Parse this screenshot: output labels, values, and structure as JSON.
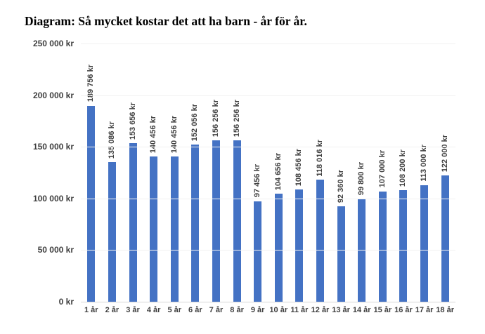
{
  "title": "Diagram: Så mycket kostar det att ha barn - år för år.",
  "chart_data": {
    "type": "bar",
    "title": "Diagram: Så mycket kostar det att ha barn - år för år.",
    "categories": [
      "1 år",
      "2 år",
      "3 år",
      "4 år",
      "5 år",
      "6 år",
      "7 år",
      "8 år",
      "9 år",
      "10 år",
      "11 år",
      "12 år",
      "13 år",
      "14 år",
      "15 år",
      "16 år",
      "17 år",
      "18 år"
    ],
    "values": [
      189756,
      135086,
      153656,
      140456,
      140456,
      152056,
      156256,
      156256,
      97456,
      104656,
      108456,
      118016,
      92360,
      99800,
      107000,
      108200,
      113000,
      122000
    ],
    "value_labels": [
      "189 756 kr",
      "135 086 kr",
      "153 656 kr",
      "140 456 kr",
      "140 456 kr",
      "152 056 kr",
      "156 256 kr",
      "156 256 kr",
      "97 456 kr",
      "104 656 kr",
      "108 456 kr",
      "118 016 kr",
      "92 360 kr",
      "99 800 kr",
      "107 000 kr",
      "108 200 kr",
      "113 000 kr",
      "122 000 kr"
    ],
    "y_tick_labels": [
      "250 000 kr",
      "200 000 kr",
      "150 000 kr",
      "100 000 kr",
      "50 000 kr",
      "0 kr"
    ],
    "ylim": [
      0,
      250000
    ],
    "xlabel": "",
    "ylabel": "",
    "grid": true,
    "legend_position": "none",
    "bar_color": "#4472C4",
    "label_rotation_degrees": 90
  }
}
